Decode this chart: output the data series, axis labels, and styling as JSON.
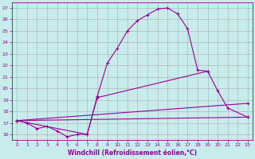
{
  "xlabel": "Windchill (Refroidissement éolien,°C)",
  "bg_color": "#c8ecec",
  "line_color": "#990099",
  "grid_color": "#aaaaaa",
  "xlim": [
    -0.5,
    23.5
  ],
  "ylim": [
    15.5,
    27.5
  ],
  "yticks": [
    16,
    17,
    18,
    19,
    20,
    21,
    22,
    23,
    24,
    25,
    26,
    27
  ],
  "xticks": [
    0,
    1,
    2,
    3,
    4,
    5,
    6,
    7,
    8,
    9,
    10,
    11,
    12,
    13,
    14,
    15,
    16,
    17,
    18,
    19,
    20,
    21,
    22,
    23
  ],
  "line1_x": [
    0,
    1,
    2,
    3,
    4,
    5,
    6,
    7,
    8,
    9,
    10,
    11,
    12,
    13,
    14,
    15,
    16,
    17,
    18,
    19
  ],
  "line1_y": [
    17.2,
    17.0,
    16.5,
    16.7,
    16.3,
    15.8,
    16.0,
    16.0,
    19.3,
    22.2,
    23.5,
    25.0,
    25.9,
    26.4,
    26.9,
    27.0,
    26.5,
    25.2,
    21.6,
    21.5
  ],
  "line2_x": [
    0,
    7,
    8,
    19,
    20,
    21,
    23
  ],
  "line2_y": [
    17.2,
    16.0,
    19.2,
    21.5,
    19.8,
    18.3,
    17.5
  ],
  "line3_x": [
    0,
    23
  ],
  "line3_y": [
    17.2,
    17.5
  ],
  "line4_x": [
    0,
    23
  ],
  "line4_y": [
    17.2,
    18.7
  ]
}
